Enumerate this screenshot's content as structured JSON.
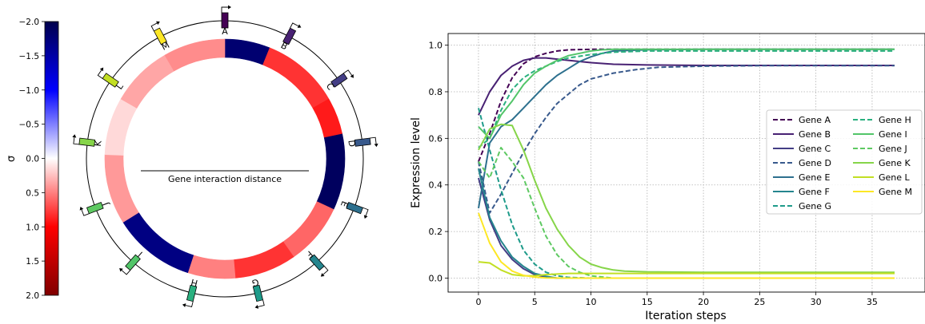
{
  "chart_data": [
    {
      "type": "colorbar",
      "ylabel": "σ",
      "ylim": [
        2.0,
        -2.0
      ],
      "tick_labels": [
        "−2.0",
        "−1.5",
        "−1.0",
        "−0.5",
        "0.0",
        "0.5",
        "1.0",
        "1.5",
        "2.0"
      ],
      "tick_values": [
        -2.0,
        -1.5,
        -1.0,
        -0.5,
        0.0,
        0.5,
        1.0,
        1.5,
        2.0
      ],
      "colormap": "seismic"
    },
    {
      "type": "circular",
      "center_label": "Gene interaction distance",
      "genes": [
        {
          "label": "A",
          "angle": 0,
          "color": "#440154"
        },
        {
          "label": "B",
          "angle": 27.7,
          "color": "#482173"
        },
        {
          "label": "C",
          "angle": 55.4,
          "color": "#433e85"
        },
        {
          "label": "D",
          "angle": 83.1,
          "color": "#38598c"
        },
        {
          "label": "E",
          "angle": 110.8,
          "color": "#2d708e"
        },
        {
          "label": "F",
          "angle": 138.5,
          "color": "#25858e"
        },
        {
          "label": "G",
          "angle": 166.2,
          "color": "#1e9b8a"
        },
        {
          "label": "H",
          "angle": 193.8,
          "color": "#2ab07f"
        },
        {
          "label": "I",
          "angle": 221.5,
          "color": "#52c569"
        },
        {
          "label": "J",
          "angle": 249.2,
          "color": "#5ec962"
        },
        {
          "label": "K",
          "angle": 276.9,
          "color": "#86d549"
        },
        {
          "label": "L",
          "angle": 304.6,
          "color": "#c2df23"
        },
        {
          "label": "M",
          "angle": 332.3,
          "color": "#fde725"
        }
      ],
      "ring_segments": [
        {
          "start": 0,
          "end": 22,
          "sigma": -1.8
        },
        {
          "start": 22,
          "end": 60,
          "sigma": 0.8
        },
        {
          "start": 60,
          "end": 78,
          "sigma": 0.9
        },
        {
          "start": 78,
          "end": 115,
          "sigma": -1.9
        },
        {
          "start": 115,
          "end": 145,
          "sigma": 0.6
        },
        {
          "start": 145,
          "end": 175,
          "sigma": 0.8
        },
        {
          "start": 175,
          "end": 198,
          "sigma": 0.5
        },
        {
          "start": 198,
          "end": 238,
          "sigma": -1.7
        },
        {
          "start": 238,
          "end": 272,
          "sigma": 0.4
        },
        {
          "start": 272,
          "end": 300,
          "sigma": 0.15
        },
        {
          "start": 300,
          "end": 330,
          "sigma": 0.35
        },
        {
          "start": 330,
          "end": 360,
          "sigma": 0.45
        }
      ]
    },
    {
      "type": "line",
      "xlabel": "Iteration steps",
      "ylabel": "Expression level",
      "xlim": [
        -2.7,
        39.7
      ],
      "ylim": [
        -0.06,
        1.05
      ],
      "xticks": [
        0,
        5,
        10,
        15,
        20,
        25,
        30,
        35
      ],
      "yticks": [
        0.0,
        0.2,
        0.4,
        0.6,
        0.8,
        1.0
      ],
      "grid": true,
      "legend_position": "right",
      "series": [
        {
          "name": "Gene A",
          "color": "#440154",
          "dashed": true,
          "x": [
            0,
            1,
            2,
            3,
            4,
            5,
            6,
            7,
            8,
            10,
            12,
            15,
            20,
            37
          ],
          "y": [
            0.5,
            0.62,
            0.76,
            0.86,
            0.92,
            0.95,
            0.965,
            0.975,
            0.98,
            0.982,
            0.982,
            0.982,
            0.982,
            0.982
          ]
        },
        {
          "name": "Gene B",
          "color": "#482173",
          "dashed": false,
          "x": [
            0,
            1,
            2,
            3,
            4,
            5,
            6,
            8,
            10,
            12,
            15,
            20,
            25,
            37
          ],
          "y": [
            0.7,
            0.8,
            0.87,
            0.91,
            0.935,
            0.945,
            0.945,
            0.935,
            0.925,
            0.918,
            0.915,
            0.913,
            0.913,
            0.913
          ]
        },
        {
          "name": "Gene C",
          "color": "#433e85",
          "dashed": false,
          "x": [
            0,
            1,
            2,
            3,
            4,
            5,
            6,
            7,
            8,
            10,
            15,
            37
          ],
          "y": [
            0.43,
            0.25,
            0.14,
            0.08,
            0.04,
            0.015,
            0.005,
            0,
            0,
            0,
            0,
            0
          ]
        },
        {
          "name": "Gene D",
          "color": "#38598c",
          "dashed": true,
          "x": [
            0,
            1,
            2,
            3,
            4,
            5,
            6,
            7,
            8,
            9,
            10,
            12,
            14,
            16,
            20,
            25,
            37
          ],
          "y": [
            0.5,
            0.28,
            0.36,
            0.45,
            0.54,
            0.62,
            0.69,
            0.75,
            0.79,
            0.83,
            0.855,
            0.88,
            0.895,
            0.905,
            0.91,
            0.912,
            0.912
          ]
        },
        {
          "name": "Gene E",
          "color": "#2d708e",
          "dashed": false,
          "x": [
            0,
            1,
            2,
            3,
            4,
            5,
            6,
            7,
            8,
            9,
            10,
            11,
            12,
            15,
            20,
            37
          ],
          "y": [
            0.3,
            0.58,
            0.65,
            0.68,
            0.73,
            0.78,
            0.83,
            0.87,
            0.9,
            0.93,
            0.95,
            0.965,
            0.975,
            0.98,
            0.982,
            0.982
          ]
        },
        {
          "name": "Gene F",
          "color": "#25858e",
          "dashed": false,
          "x": [
            0,
            1,
            2,
            3,
            4,
            5,
            6,
            7,
            8,
            10,
            15,
            37
          ],
          "y": [
            0.47,
            0.26,
            0.16,
            0.09,
            0.05,
            0.02,
            0.008,
            0,
            0,
            0,
            0,
            0
          ]
        },
        {
          "name": "Gene G",
          "color": "#1e9b8a",
          "dashed": true,
          "x": [
            0,
            1,
            2,
            3,
            4,
            5,
            6,
            7,
            8,
            10,
            12,
            15,
            37
          ],
          "y": [
            0.73,
            0.55,
            0.38,
            0.23,
            0.12,
            0.06,
            0.025,
            0.01,
            0.003,
            0,
            0,
            0,
            0
          ]
        },
        {
          "name": "Gene H",
          "color": "#2ab07f",
          "dashed": true,
          "x": [
            0,
            1,
            2,
            3,
            4,
            5,
            6,
            7,
            8,
            10,
            12,
            15,
            37
          ],
          "y": [
            0.56,
            0.6,
            0.72,
            0.81,
            0.86,
            0.89,
            0.91,
            0.93,
            0.945,
            0.96,
            0.97,
            0.975,
            0.975
          ]
        },
        {
          "name": "Gene I",
          "color": "#52c569",
          "dashed": false,
          "x": [
            0,
            1,
            2,
            3,
            4,
            5,
            6,
            7,
            8,
            9,
            10,
            11,
            12,
            15,
            20,
            37
          ],
          "y": [
            0.65,
            0.6,
            0.7,
            0.76,
            0.83,
            0.88,
            0.91,
            0.935,
            0.955,
            0.965,
            0.975,
            0.98,
            0.982,
            0.982,
            0.982,
            0.982
          ]
        },
        {
          "name": "Gene J",
          "color": "#5ec962",
          "dashed": true,
          "x": [
            0,
            1,
            2,
            3,
            4,
            5,
            6,
            7,
            8,
            9,
            10,
            12,
            15,
            37
          ],
          "y": [
            0.5,
            0.43,
            0.56,
            0.5,
            0.43,
            0.3,
            0.18,
            0.1,
            0.05,
            0.025,
            0.01,
            0,
            0,
            0
          ]
        },
        {
          "name": "Gene K",
          "color": "#86d549",
          "dashed": false,
          "x": [
            0,
            1,
            2,
            3,
            4,
            5,
            6,
            7,
            8,
            9,
            10,
            11,
            12,
            13,
            15,
            20,
            37
          ],
          "y": [
            0.55,
            0.64,
            0.66,
            0.655,
            0.55,
            0.42,
            0.3,
            0.21,
            0.14,
            0.09,
            0.06,
            0.045,
            0.035,
            0.03,
            0.027,
            0.025,
            0.025
          ]
        },
        {
          "name": "Gene L",
          "color": "#c2df23",
          "dashed": false,
          "x": [
            0,
            1,
            2,
            3,
            4,
            5,
            6,
            8,
            10,
            15,
            37
          ],
          "y": [
            0.07,
            0.065,
            0.035,
            0.015,
            0.01,
            0.01,
            0.015,
            0.02,
            0.02,
            0.02,
            0.02
          ]
        },
        {
          "name": "Gene M",
          "color": "#fde725",
          "dashed": false,
          "x": [
            0,
            1,
            2,
            3,
            4,
            5,
            6,
            8,
            10,
            15,
            37
          ],
          "y": [
            0.28,
            0.15,
            0.07,
            0.03,
            0.012,
            0.004,
            0.001,
            0,
            0,
            0,
            0
          ]
        }
      ]
    }
  ]
}
